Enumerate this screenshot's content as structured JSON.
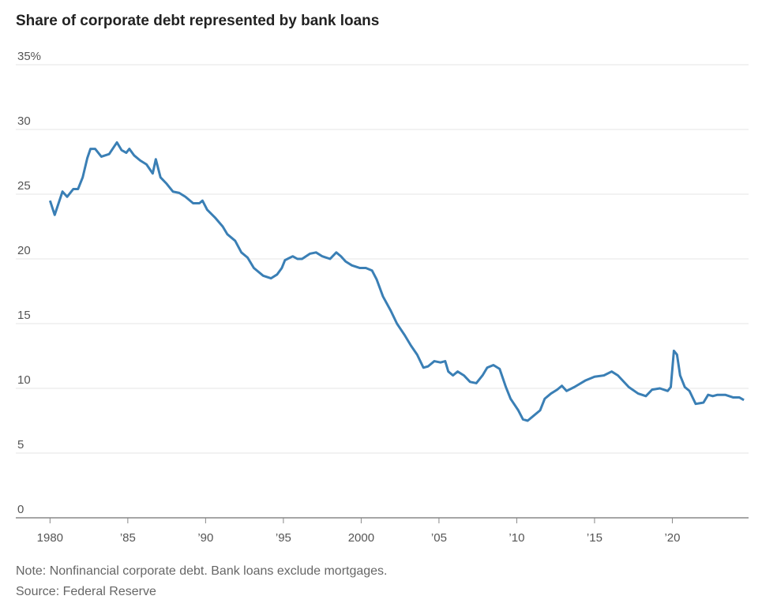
{
  "chart_data": {
    "type": "line",
    "title": "Share of corporate debt represented by bank loans",
    "note": "Note: Nonfinancial corporate debt. Bank loans exclude mortgages.",
    "source": "Source: Federal Reserve",
    "color": "#3a7fb5",
    "x": [
      1980,
      1980.3,
      1980.8,
      1981.1,
      1981.5,
      1981.8,
      1982.1,
      1982.4,
      1982.6,
      1982.9,
      1983.3,
      1983.8,
      1984.3,
      1984.6,
      1984.9,
      1985.1,
      1985.4,
      1985.8,
      1986.2,
      1986.6,
      1986.8,
      1987.1,
      1987.5,
      1987.9,
      1988.3,
      1988.7,
      1989.2,
      1989.6,
      1989.8,
      1990.1,
      1990.6,
      1991.1,
      1991.4,
      1991.9,
      1992.3,
      1992.7,
      1993.1,
      1993.7,
      1994.2,
      1994.6,
      1994.9,
      1995.1,
      1995.6,
      1995.9,
      1996.2,
      1996.7,
      1997.1,
      1997.5,
      1998.0,
      1998.4,
      1998.7,
      1999.0,
      1999.4,
      1999.9,
      2000.3,
      2000.7,
      2001.0,
      2001.4,
      2001.9,
      2002.3,
      2002.8,
      2003.2,
      2003.6,
      2004.0,
      2004.3,
      2004.7,
      2005.1,
      2005.4,
      2005.6,
      2005.9,
      2006.2,
      2006.6,
      2007.0,
      2007.4,
      2007.8,
      2008.1,
      2008.5,
      2008.9,
      2009.3,
      2009.6,
      2010.1,
      2010.4,
      2010.7,
      2011.1,
      2011.5,
      2011.8,
      2012.2,
      2012.6,
      2012.9,
      2013.2,
      2013.7,
      2014.4,
      2015.0,
      2015.6,
      2016.1,
      2016.5,
      2017.2,
      2017.8,
      2018.3,
      2018.7,
      2019.2,
      2019.7,
      2019.9,
      2020.1,
      2020.3,
      2020.5,
      2020.8,
      2021.1,
      2021.5,
      2022.0,
      2022.3,
      2022.6,
      2022.9,
      2023.4,
      2023.9,
      2024.3,
      2024.6
    ],
    "values": [
      24.5,
      23.4,
      25.2,
      24.8,
      25.4,
      25.4,
      26.3,
      27.8,
      28.5,
      28.5,
      27.9,
      28.1,
      29.0,
      28.4,
      28.2,
      28.5,
      28.0,
      27.6,
      27.3,
      26.6,
      27.7,
      26.3,
      25.8,
      25.2,
      25.1,
      24.8,
      24.3,
      24.3,
      24.5,
      23.8,
      23.2,
      22.5,
      21.9,
      21.4,
      20.5,
      20.1,
      19.3,
      18.7,
      18.5,
      18.8,
      19.3,
      19.9,
      20.2,
      20.0,
      20.0,
      20.4,
      20.5,
      20.2,
      20.0,
      20.5,
      20.2,
      19.8,
      19.5,
      19.3,
      19.3,
      19.1,
      18.4,
      17.1,
      16.0,
      15.0,
      14.1,
      13.3,
      12.6,
      11.6,
      11.7,
      12.1,
      12.0,
      12.1,
      11.3,
      11.0,
      11.3,
      11.0,
      10.5,
      10.4,
      11.0,
      11.6,
      11.8,
      11.5,
      10.1,
      9.2,
      8.3,
      7.6,
      7.5,
      7.9,
      8.3,
      9.2,
      9.6,
      9.9,
      10.2,
      9.8,
      10.1,
      10.6,
      10.9,
      11.0,
      11.3,
      11.0,
      10.1,
      9.6,
      9.4,
      9.9,
      10.0,
      9.8,
      10.1,
      12.9,
      12.6,
      11.0,
      10.1,
      9.8,
      8.8,
      8.9,
      9.5,
      9.4,
      9.5,
      9.5,
      9.3,
      9.3,
      9.1
    ],
    "xlim": [
      1977.8,
      2024.9
    ],
    "xticks": [
      1980,
      {
        "value": 1985,
        "label": "’85"
      },
      {
        "value": 1990,
        "label": "’90"
      },
      {
        "value": 1995,
        "label": "’95"
      },
      2000,
      {
        "value": 2005,
        "label": "’05"
      },
      {
        "value": 2010,
        "label": "’10"
      },
      {
        "value": 2015,
        "label": "’15"
      },
      {
        "value": 2020,
        "label": "’20"
      }
    ],
    "ylim": [
      0,
      35
    ],
    "yticks": [
      0,
      5,
      10,
      15,
      20,
      25,
      30,
      {
        "value": 35,
        "label": "35%"
      }
    ],
    "grid": true
  }
}
